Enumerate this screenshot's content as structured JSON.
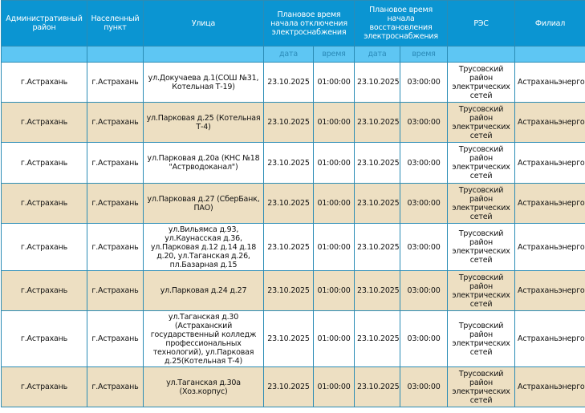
{
  "headers": {
    "district": "Административный район",
    "locality": "Населенный пункт",
    "street": "Улица",
    "off": "Плановое время начала отключения электроснабжения",
    "restore": "Плановое время начала восстановления электроснабжения",
    "res": "РЭС",
    "branch": "Филиал",
    "date": "дата",
    "time": "время"
  },
  "rows": [
    {
      "district": "г.Астрахань",
      "locality": "г.Астрахань",
      "street": "ул.Докучаева д.1(СОШ №31, Котельная Т-19)",
      "off_date": "23.10.2025",
      "off_time": "01:00:00",
      "on_date": "23.10.2025",
      "on_time": "03:00:00",
      "res": "Трусовский район электрических сетей",
      "branch": "Астраханьэнерго"
    },
    {
      "district": "г.Астрахань",
      "locality": "г.Астрахань",
      "street": "ул.Парковая д.25 (Котельная Т-4)",
      "off_date": "23.10.2025",
      "off_time": "01:00:00",
      "on_date": "23.10.2025",
      "on_time": "03:00:00",
      "res": "Трусовский район электрических сетей",
      "branch": "Астраханьэнерго"
    },
    {
      "district": "г.Астрахань",
      "locality": "г.Астрахань",
      "street": "ул.Парковая д.20а (КНС №18 \"Астрводоканал\")",
      "off_date": "23.10.2025",
      "off_time": "01:00:00",
      "on_date": "23.10.2025",
      "on_time": "03:00:00",
      "res": "Трусовский район электрических сетей",
      "branch": "Астраханьэнерго"
    },
    {
      "district": "г.Астрахань",
      "locality": "г.Астрахань",
      "street": "ул.Парковая д.27 (СберБанк, ПАО)",
      "off_date": "23.10.2025",
      "off_time": "01:00:00",
      "on_date": "23.10.2025",
      "on_time": "03:00:00",
      "res": "Трусовский район электрических сетей",
      "branch": "Астраханьэнерго"
    },
    {
      "district": "г.Астрахань",
      "locality": "г.Астрахань",
      "street": "ул.Вильямса д.93, ул.Каунасская д.36, ул.Парковая д.12 д.14 д.18 д.20, ул.Таганская д.26, пл.Базарная д.15",
      "off_date": "23.10.2025",
      "off_time": "01:00:00",
      "on_date": "23.10.2025",
      "on_time": "03:00:00",
      "res": "Трусовский район электрических сетей",
      "branch": "Астраханьэнерго"
    },
    {
      "district": "г.Астрахань",
      "locality": "г.Астрахань",
      "street": "ул.Парковая д.24 д.27",
      "off_date": "23.10.2025",
      "off_time": "01:00:00",
      "on_date": "23.10.2025",
      "on_time": "03:00:00",
      "res": "Трусовский район электрических сетей",
      "branch": "Астраханьэнерго"
    },
    {
      "district": "г.Астрахань",
      "locality": "г.Астрахань",
      "street": "ул.Таганская д.30 (Астраханский государственный колледж профессиональных технологий), ул.Парковая д.25(Котельная Т-4)",
      "off_date": "23.10.2025",
      "off_time": "01:00:00",
      "on_date": "23.10.2025",
      "on_time": "03:00:00",
      "res": "Трусовский район электрических сетей",
      "branch": "Астраханьэнерго"
    },
    {
      "district": "г.Астрахань",
      "locality": "г.Астрахань",
      "street": "ул.Таганская д.30а (Хоз.корпус)",
      "off_date": "23.10.2025",
      "off_time": "01:00:00",
      "on_date": "23.10.2025",
      "on_time": "03:00:00",
      "res": "Трусовский район электрических сетей",
      "branch": "Астраханьэнерго"
    }
  ]
}
